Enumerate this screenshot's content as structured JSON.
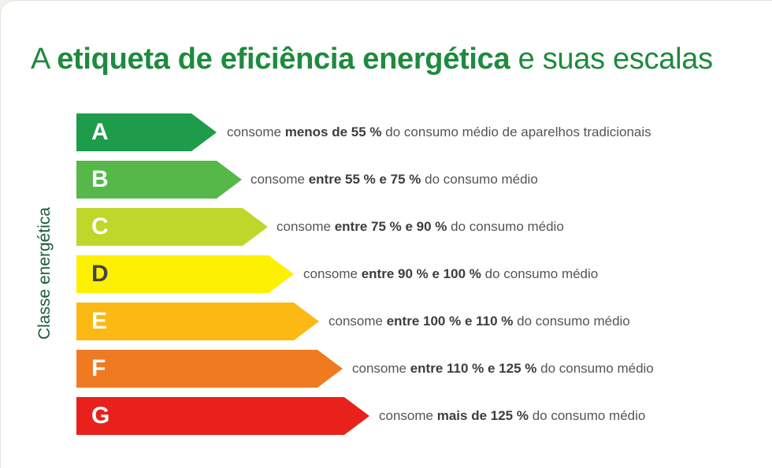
{
  "title": {
    "prefix": "A",
    "bold": "etiqueta de eficiência energética",
    "suffix": "e suas escalas"
  },
  "y_axis_label": "Classe energética",
  "classes": [
    {
      "letter": "A",
      "prefix": "consome",
      "bold": "menos de 55 %",
      "suffix": "do consumo médio de aparelhos tradicionais",
      "color": "#1e9c4c",
      "letter_color": "#ffffff"
    },
    {
      "letter": "B",
      "prefix": "consome",
      "bold": "entre 55 % e 75 %",
      "suffix": "do consumo médio",
      "color": "#55b848",
      "letter_color": "#ffffff"
    },
    {
      "letter": "C",
      "prefix": "consome",
      "bold": "entre 75 % e 90 %",
      "suffix": "do consumo médio",
      "color": "#bfd62a",
      "letter_color": "#ffffff"
    },
    {
      "letter": "D",
      "prefix": "consome",
      "bold": "entre 90 % e 100 %",
      "suffix": "do consumo médio",
      "color": "#fdf000",
      "letter_color": "#444444"
    },
    {
      "letter": "E",
      "prefix": "consome",
      "bold": "entre 100 % e 110 %",
      "suffix": "do consumo médio",
      "color": "#fdb913",
      "letter_color": "#ffffff"
    },
    {
      "letter": "F",
      "prefix": "consome",
      "bold": "entre 110 % e 125 %",
      "suffix": "do consumo médio",
      "color": "#f07a1f",
      "letter_color": "#ffffff"
    },
    {
      "letter": "G",
      "prefix": "consome",
      "bold": "mais de 125 %",
      "suffix": "do consumo médio",
      "color": "#e8211d",
      "letter_color": "#ffffff"
    }
  ]
}
